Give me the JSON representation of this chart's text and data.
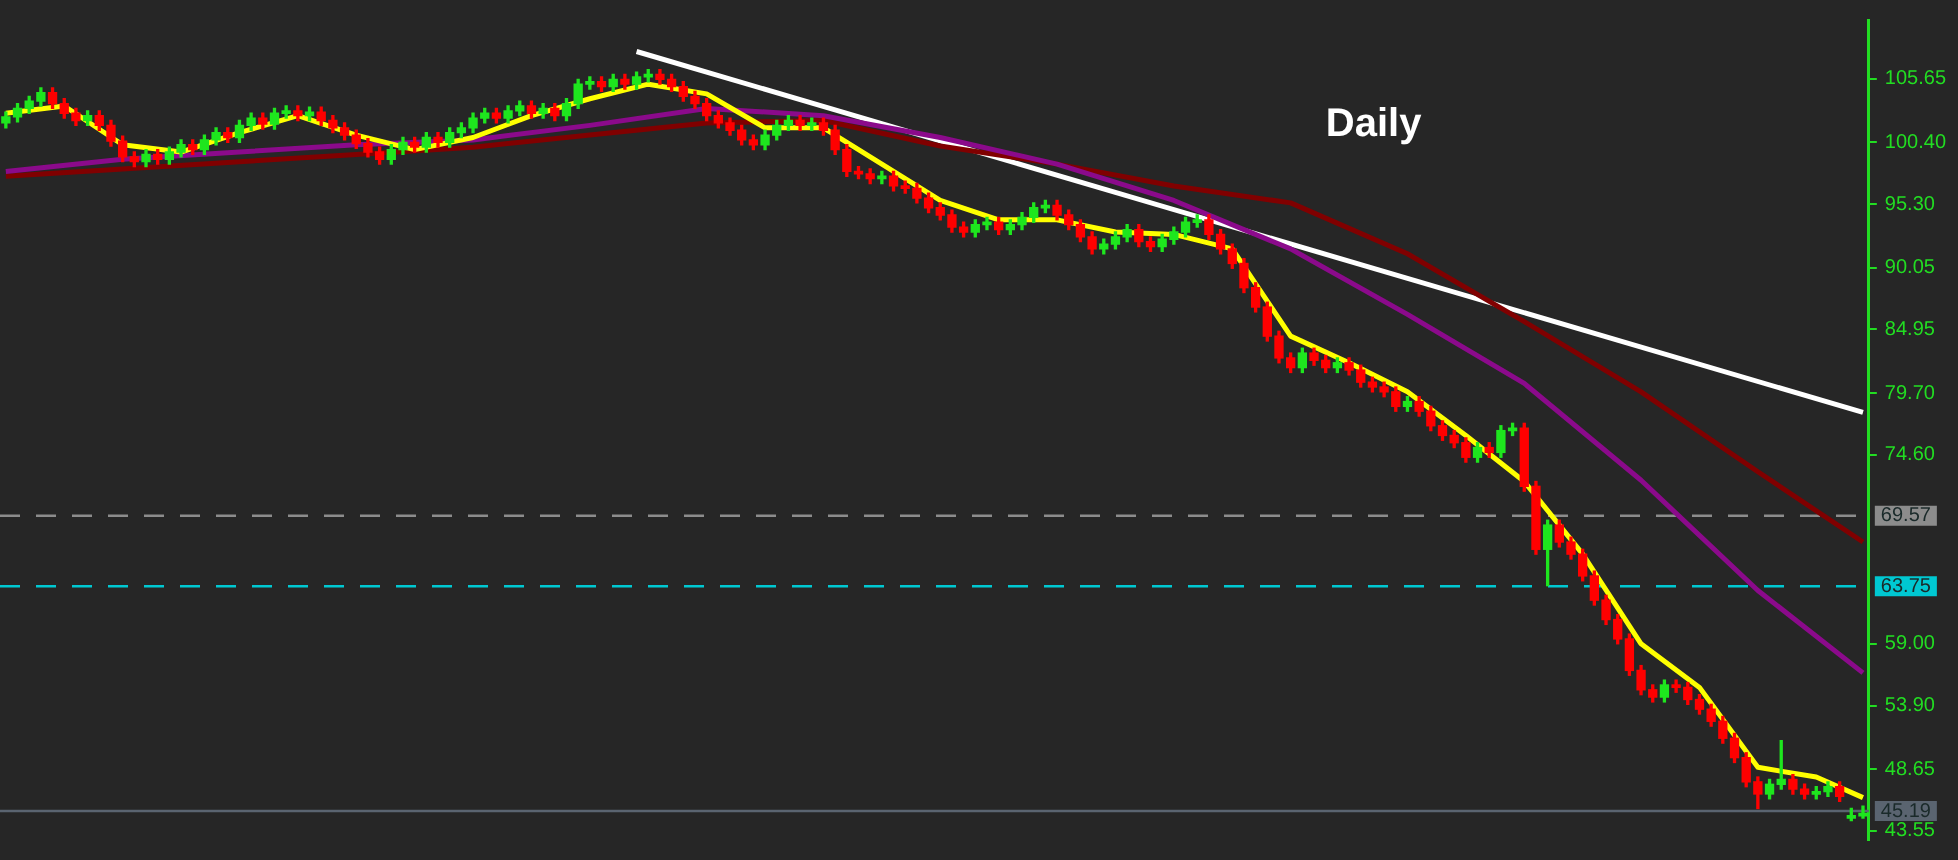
{
  "chart_data": {
    "type": "candlestick",
    "categories": [
      null,
      null,
      null,
      null,
      null,
      null,
      null,
      null,
      null,
      null,
      null,
      null,
      null,
      null,
      null,
      null,
      null,
      null,
      null,
      null,
      null,
      null,
      null,
      null,
      null,
      null,
      null,
      null,
      null,
      null,
      null,
      null,
      null,
      null,
      null,
      null,
      null,
      null,
      null,
      null,
      null,
      null,
      null,
      null,
      null,
      null,
      null,
      null,
      null,
      null,
      null,
      null,
      null,
      null,
      null,
      null,
      null,
      null,
      null,
      null,
      null,
      null,
      null,
      null,
      null,
      null,
      null,
      null,
      null,
      null,
      null,
      null,
      null,
      null,
      null,
      null,
      null,
      null,
      null,
      null,
      null,
      null,
      null,
      null,
      null,
      null,
      null,
      null,
      null,
      null,
      null,
      null,
      null,
      null,
      null,
      null,
      null,
      null,
      null,
      null,
      null,
      null,
      null,
      null,
      null,
      null,
      null,
      null,
      null,
      null,
      null,
      null,
      null,
      null,
      null,
      null,
      null,
      null,
      null,
      null,
      null,
      null,
      null,
      null,
      null,
      null,
      null,
      null,
      null,
      null,
      null,
      null,
      null,
      null,
      null,
      null,
      null,
      null,
      null,
      null,
      null,
      null,
      null,
      null,
      null,
      null,
      null,
      null,
      null,
      null,
      null,
      null,
      null,
      null,
      null,
      null,
      null,
      null,
      null,
      null
    ],
    "ohlc": [
      [
        102.0,
        102.9,
        101.6,
        102.5
      ],
      [
        102.5,
        103.6,
        102.1,
        103.2
      ],
      [
        103.2,
        104.2,
        102.8,
        103.8
      ],
      [
        103.8,
        104.9,
        103.4,
        104.5
      ],
      [
        104.5,
        104.9,
        103.2,
        103.6
      ],
      [
        103.6,
        104.0,
        102.4,
        102.8
      ],
      [
        102.8,
        103.2,
        101.8,
        102.2
      ],
      [
        102.2,
        103.0,
        101.8,
        102.6
      ],
      [
        102.6,
        103.0,
        101.4,
        101.8
      ],
      [
        101.8,
        102.2,
        100.1,
        100.5
      ],
      [
        100.5,
        100.9,
        98.8,
        99.2
      ],
      [
        99.2,
        99.6,
        98.4,
        98.8
      ],
      [
        98.8,
        99.8,
        98.4,
        99.4
      ],
      [
        99.4,
        99.8,
        98.6,
        99.0
      ],
      [
        99.0,
        100.0,
        98.6,
        99.6
      ],
      [
        99.6,
        100.6,
        99.2,
        100.2
      ],
      [
        100.2,
        100.6,
        99.4,
        99.8
      ],
      [
        99.8,
        101.0,
        99.4,
        100.6
      ],
      [
        100.6,
        101.6,
        100.2,
        101.2
      ],
      [
        101.2,
        101.6,
        100.4,
        100.8
      ],
      [
        100.8,
        102.2,
        100.4,
        101.8
      ],
      [
        101.8,
        102.8,
        101.4,
        102.4
      ],
      [
        102.4,
        102.8,
        101.5,
        101.9
      ],
      [
        101.9,
        103.2,
        101.5,
        102.8
      ],
      [
        102.8,
        103.4,
        102.4,
        103.0
      ],
      [
        103.0,
        103.4,
        102.2,
        102.6
      ],
      [
        102.6,
        103.3,
        102.2,
        102.9
      ],
      [
        102.9,
        103.3,
        101.8,
        102.2
      ],
      [
        102.2,
        102.6,
        101.2,
        101.6
      ],
      [
        101.6,
        102.0,
        100.6,
        101.0
      ],
      [
        101.0,
        101.4,
        99.9,
        100.3
      ],
      [
        100.3,
        100.7,
        99.2,
        99.6
      ],
      [
        99.6,
        100.0,
        98.6,
        99.0
      ],
      [
        99.0,
        100.2,
        98.6,
        99.8
      ],
      [
        99.8,
        100.8,
        99.4,
        100.4
      ],
      [
        100.4,
        100.8,
        99.6,
        100.0
      ],
      [
        100.0,
        101.2,
        99.6,
        100.8
      ],
      [
        100.8,
        101.2,
        100.0,
        100.4
      ],
      [
        100.4,
        101.6,
        100.0,
        101.2
      ],
      [
        101.2,
        102.0,
        100.8,
        101.6
      ],
      [
        101.6,
        102.8,
        101.2,
        102.4
      ],
      [
        102.4,
        103.2,
        102.0,
        102.8
      ],
      [
        102.8,
        103.2,
        102.0,
        102.4
      ],
      [
        102.4,
        103.4,
        102.0,
        103.0
      ],
      [
        103.0,
        103.8,
        102.6,
        103.4
      ],
      [
        103.4,
        103.8,
        102.4,
        102.8
      ],
      [
        102.8,
        103.6,
        102.4,
        103.2
      ],
      [
        103.2,
        103.6,
        102.2,
        102.6
      ],
      [
        102.6,
        104.0,
        102.2,
        103.6
      ],
      [
        103.6,
        105.6,
        103.2,
        105.2
      ],
      [
        105.2,
        105.8,
        104.8,
        105.4
      ],
      [
        105.4,
        105.8,
        104.6,
        105.0
      ],
      [
        105.0,
        106.0,
        104.6,
        105.6
      ],
      [
        105.6,
        106.0,
        104.8,
        105.2
      ],
      [
        105.2,
        106.2,
        104.8,
        105.8
      ],
      [
        105.8,
        106.4,
        105.4,
        106.0
      ],
      [
        106.0,
        106.4,
        105.2,
        105.6
      ],
      [
        105.6,
        106.0,
        104.6,
        105.0
      ],
      [
        105.0,
        105.4,
        103.8,
        104.2
      ],
      [
        104.2,
        104.6,
        103.2,
        103.6
      ],
      [
        103.6,
        104.0,
        102.2,
        102.6
      ],
      [
        102.6,
        103.0,
        101.6,
        102.0
      ],
      [
        102.0,
        102.4,
        101.0,
        101.4
      ],
      [
        101.4,
        101.8,
        100.2,
        100.6
      ],
      [
        100.6,
        101.0,
        99.8,
        100.2
      ],
      [
        100.2,
        101.4,
        99.8,
        101.0
      ],
      [
        101.0,
        102.2,
        100.6,
        101.8
      ],
      [
        101.8,
        102.6,
        101.4,
        102.2
      ],
      [
        102.2,
        102.6,
        101.4,
        101.8
      ],
      [
        101.8,
        102.4,
        101.4,
        102.0
      ],
      [
        102.0,
        102.4,
        101.0,
        101.4
      ],
      [
        101.4,
        101.8,
        99.4,
        99.8
      ],
      [
        99.8,
        100.2,
        97.6,
        98.0
      ],
      [
        98.0,
        98.4,
        97.4,
        97.8
      ],
      [
        97.8,
        98.2,
        97.0,
        97.4
      ],
      [
        97.4,
        98.0,
        97.0,
        97.6
      ],
      [
        97.6,
        98.0,
        96.4,
        96.8
      ],
      [
        96.8,
        97.2,
        96.2,
        96.6
      ],
      [
        96.6,
        97.0,
        95.4,
        95.8
      ],
      [
        95.8,
        96.2,
        94.6,
        95.0
      ],
      [
        95.0,
        95.4,
        94.0,
        94.4
      ],
      [
        94.4,
        94.8,
        93.0,
        93.4
      ],
      [
        93.4,
        93.8,
        92.6,
        93.0
      ],
      [
        93.0,
        94.0,
        92.6,
        93.6
      ],
      [
        93.6,
        94.2,
        93.2,
        93.8
      ],
      [
        93.8,
        94.2,
        92.8,
        93.2
      ],
      [
        93.2,
        94.0,
        92.8,
        93.6
      ],
      [
        93.6,
        94.6,
        93.2,
        94.2
      ],
      [
        94.2,
        95.4,
        93.8,
        95.0
      ],
      [
        95.0,
        95.6,
        94.6,
        95.2
      ],
      [
        95.2,
        95.6,
        94.0,
        94.4
      ],
      [
        94.4,
        94.8,
        93.2,
        93.6
      ],
      [
        93.6,
        94.0,
        92.2,
        92.6
      ],
      [
        92.6,
        93.0,
        91.2,
        91.6
      ],
      [
        91.6,
        92.4,
        91.2,
        92.0
      ],
      [
        92.0,
        93.0,
        91.6,
        92.6
      ],
      [
        92.6,
        93.6,
        92.2,
        93.2
      ],
      [
        93.2,
        93.6,
        91.8,
        92.2
      ],
      [
        92.2,
        92.6,
        91.4,
        91.8
      ],
      [
        91.8,
        92.8,
        91.4,
        92.4
      ],
      [
        92.4,
        93.4,
        92.0,
        93.0
      ],
      [
        93.0,
        94.2,
        92.6,
        93.8
      ],
      [
        93.8,
        94.4,
        93.4,
        94.0
      ],
      [
        94.0,
        94.4,
        92.4,
        92.8
      ],
      [
        92.8,
        93.2,
        91.2,
        91.6
      ],
      [
        91.6,
        92.0,
        90.0,
        90.4
      ],
      [
        90.4,
        90.8,
        88.0,
        88.4
      ],
      [
        88.4,
        88.8,
        86.4,
        86.8
      ],
      [
        86.8,
        87.2,
        84.0,
        84.4
      ],
      [
        84.4,
        84.8,
        82.2,
        82.6
      ],
      [
        82.6,
        83.0,
        81.4,
        81.8
      ],
      [
        81.8,
        83.4,
        81.4,
        83.0
      ],
      [
        83.0,
        83.4,
        82.0,
        82.4
      ],
      [
        82.4,
        82.8,
        81.4,
        81.8
      ],
      [
        81.8,
        82.6,
        81.4,
        82.2
      ],
      [
        82.2,
        82.6,
        81.2,
        81.6
      ],
      [
        81.6,
        82.0,
        80.2,
        80.6
      ],
      [
        80.6,
        81.0,
        79.8,
        80.2
      ],
      [
        80.2,
        80.6,
        79.4,
        79.8
      ],
      [
        79.8,
        80.2,
        78.2,
        78.6
      ],
      [
        78.6,
        79.4,
        78.2,
        79.0
      ],
      [
        79.0,
        79.4,
        77.8,
        78.2
      ],
      [
        78.2,
        78.6,
        76.6,
        77.0
      ],
      [
        77.0,
        77.4,
        75.8,
        76.2
      ],
      [
        76.2,
        76.6,
        75.2,
        75.6
      ],
      [
        75.6,
        76.0,
        74.0,
        74.4
      ],
      [
        74.4,
        75.6,
        74.0,
        75.2
      ],
      [
        75.2,
        75.6,
        74.4,
        74.8
      ],
      [
        74.8,
        77.0,
        74.4,
        76.6
      ],
      [
        76.6,
        77.2,
        76.2,
        76.8
      ],
      [
        76.8,
        77.2,
        71.6,
        72.0
      ],
      [
        72.0,
        72.4,
        66.4,
        66.8
      ],
      [
        66.8,
        69.2,
        63.8,
        68.8
      ],
      [
        68.8,
        69.2,
        67.0,
        67.4
      ],
      [
        67.4,
        67.8,
        66.0,
        66.4
      ],
      [
        66.4,
        66.8,
        64.2,
        64.6
      ],
      [
        64.6,
        65.0,
        62.2,
        62.6
      ],
      [
        62.6,
        63.0,
        60.6,
        61.0
      ],
      [
        61.0,
        61.4,
        59.0,
        59.4
      ],
      [
        59.4,
        59.8,
        56.4,
        56.8
      ],
      [
        56.8,
        57.2,
        54.8,
        55.2
      ],
      [
        55.2,
        55.6,
        54.2,
        54.6
      ],
      [
        54.6,
        56.0,
        54.2,
        55.6
      ],
      [
        55.6,
        56.0,
        55.0,
        55.4
      ],
      [
        55.4,
        55.8,
        54.0,
        54.4
      ],
      [
        54.4,
        54.8,
        53.2,
        53.6
      ],
      [
        53.6,
        54.0,
        52.2,
        52.6
      ],
      [
        52.6,
        53.0,
        50.8,
        51.2
      ],
      [
        51.2,
        51.6,
        49.2,
        49.6
      ],
      [
        49.6,
        50.0,
        47.2,
        47.6
      ],
      [
        47.6,
        48.0,
        45.4,
        46.6
      ],
      [
        46.6,
        47.8,
        46.2,
        47.4
      ],
      [
        47.4,
        51.0,
        47.0,
        47.8
      ],
      [
        47.8,
        48.2,
        46.6,
        47.0
      ],
      [
        47.0,
        47.4,
        46.2,
        46.6
      ],
      [
        46.6,
        47.2,
        46.2,
        46.8
      ],
      [
        46.8,
        47.6,
        46.4,
        47.2
      ],
      [
        47.2,
        47.6,
        46.0,
        46.4
      ],
      [
        44.6,
        45.4,
        44.4,
        44.8
      ],
      [
        44.8,
        45.6,
        44.6,
        45.0
      ]
    ],
    "colors": [
      "#1ee61e",
      "#1ee61e",
      "#1ee61e",
      "#1ee61e",
      "#ff0000",
      "#ff0000",
      "#ff0000",
      "#1ee61e",
      "#ff0000",
      "#ff0000",
      "#ff0000",
      "#ff0000",
      "#1ee61e",
      "#ff0000",
      "#1ee61e",
      "#1ee61e",
      "#ff0000",
      "#1ee61e",
      "#1ee61e",
      "#ff0000",
      "#1ee61e",
      "#1ee61e",
      "#ff0000",
      "#1ee61e",
      "#1ee61e",
      "#ff0000",
      "#1ee61e",
      "#ff0000",
      "#ff0000",
      "#ff0000",
      "#ff0000",
      "#ff0000",
      "#ff0000",
      "#1ee61e",
      "#1ee61e",
      "#ff0000",
      "#1ee61e",
      "#ff0000",
      "#1ee61e",
      "#1ee61e",
      "#1ee61e",
      "#1ee61e",
      "#ff0000",
      "#1ee61e",
      "#1ee61e",
      "#ff0000",
      "#1ee61e",
      "#ff0000",
      "#1ee61e",
      "#1ee61e",
      "#1ee61e",
      "#ff0000",
      "#1ee61e",
      "#ff0000",
      "#1ee61e",
      "#1ee61e",
      "#ff0000",
      "#ff0000",
      "#ff0000",
      "#ff0000",
      "#ff0000",
      "#ff0000",
      "#ff0000",
      "#ff0000",
      "#ff0000",
      "#1ee61e",
      "#1ee61e",
      "#1ee61e",
      "#ff0000",
      "#1ee61e",
      "#ff0000",
      "#ff0000",
      "#ff0000",
      "#ff0000",
      "#ff0000",
      "#1ee61e",
      "#ff0000",
      "#ff0000",
      "#ff0000",
      "#ff0000",
      "#ff0000",
      "#ff0000",
      "#ff0000",
      "#1ee61e",
      "#1ee61e",
      "#ff0000",
      "#1ee61e",
      "#1ee61e",
      "#1ee61e",
      "#1ee61e",
      "#ff0000",
      "#ff0000",
      "#ff0000",
      "#ff0000",
      "#1ee61e",
      "#1ee61e",
      "#1ee61e",
      "#ff0000",
      "#ff0000",
      "#1ee61e",
      "#1ee61e",
      "#1ee61e",
      "#1ee61e",
      "#ff0000",
      "#ff0000",
      "#ff0000",
      "#ff0000",
      "#ff0000",
      "#ff0000",
      "#ff0000",
      "#ff0000",
      "#1ee61e",
      "#ff0000",
      "#ff0000",
      "#1ee61e",
      "#ff0000",
      "#ff0000",
      "#ff0000",
      "#ff0000",
      "#ff0000",
      "#1ee61e",
      "#ff0000",
      "#ff0000",
      "#ff0000",
      "#ff0000",
      "#ff0000",
      "#1ee61e",
      "#ff0000",
      "#1ee61e",
      "#1ee61e",
      "#ff0000",
      "#ff0000",
      "#1ee61e",
      "#ff0000",
      "#ff0000",
      "#ff0000",
      "#ff0000",
      "#ff0000",
      "#ff0000",
      "#ff0000",
      "#ff0000",
      "#ff0000",
      "#1ee61e",
      "#ff0000",
      "#ff0000",
      "#ff0000",
      "#ff0000",
      "#ff0000",
      "#ff0000",
      "#ff0000",
      "#ff0000",
      "#1ee61e",
      "#1ee61e",
      "#ff0000",
      "#ff0000",
      "#1ee61e",
      "#1ee61e",
      "#ff0000",
      "#1ee61e",
      "#1ee61e"
    ],
    "series": [
      {
        "type": "line",
        "color": "#ffff00",
        "values": [
          102.8,
          null,
          null,
          null,
          null,
          103.4,
          null,
          null,
          null,
          null,
          100.2,
          null,
          null,
          null,
          null,
          99.6,
          null,
          null,
          null,
          null,
          101.2,
          null,
          null,
          null,
          null,
          102.6,
          null,
          null,
          null,
          null,
          101.0,
          null,
          null,
          null,
          null,
          99.8,
          null,
          null,
          null,
          null,
          100.8,
          null,
          null,
          null,
          null,
          102.6,
          null,
          null,
          null,
          null,
          104.0,
          null,
          null,
          null,
          null,
          105.2,
          null,
          null,
          null,
          null,
          104.4,
          null,
          null,
          null,
          null,
          101.6,
          null,
          null,
          null,
          null,
          101.6,
          null,
          null,
          null,
          null,
          98.6,
          null,
          null,
          null,
          null,
          95.6,
          null,
          null,
          null,
          null,
          94.0,
          null,
          null,
          null,
          null,
          94.0,
          null,
          null,
          null,
          null,
          93.0,
          null,
          null,
          null,
          null,
          92.8,
          null,
          null,
          null,
          null,
          91.6,
          null,
          null,
          null,
          null,
          84.4,
          null,
          null,
          null,
          null,
          82.2,
          null,
          null,
          null,
          null,
          79.8,
          null,
          null,
          null,
          null,
          76.2,
          null,
          null,
          null,
          null,
          72.4,
          null,
          null,
          null,
          null,
          66.4,
          null,
          null,
          null,
          null,
          59.0,
          null,
          null,
          null,
          null,
          55.4,
          null,
          null,
          null,
          null,
          48.8,
          null,
          null,
          null,
          null,
          48.0,
          null,
          null,
          null,
          46.3
        ]
      },
      {
        "type": "line",
        "color": "#8b0a8b",
        "values": [
          98.0,
          null,
          null,
          null,
          null,
          null,
          null,
          null,
          null,
          null,
          99.0,
          null,
          null,
          null,
          null,
          null,
          null,
          null,
          null,
          null,
          99.6,
          null,
          null,
          null,
          null,
          null,
          null,
          null,
          null,
          null,
          100.2,
          null,
          null,
          null,
          null,
          null,
          null,
          null,
          null,
          null,
          100.6,
          null,
          null,
          null,
          null,
          null,
          null,
          null,
          null,
          null,
          101.8,
          null,
          null,
          null,
          null,
          null,
          null,
          null,
          null,
          null,
          103.2,
          null,
          null,
          null,
          null,
          null,
          null,
          null,
          null,
          null,
          102.6,
          null,
          null,
          null,
          null,
          null,
          null,
          null,
          null,
          null,
          100.8,
          null,
          null,
          null,
          null,
          null,
          null,
          null,
          null,
          null,
          98.6,
          null,
          null,
          null,
          null,
          null,
          null,
          null,
          null,
          null,
          95.6,
          null,
          null,
          null,
          null,
          null,
          null,
          null,
          null,
          null,
          91.6,
          null,
          null,
          null,
          null,
          null,
          null,
          null,
          null,
          null,
          86.2,
          null,
          null,
          null,
          null,
          null,
          null,
          null,
          null,
          null,
          80.5,
          null,
          null,
          null,
          null,
          null,
          null,
          null,
          null,
          null,
          72.5,
          null,
          null,
          null,
          null,
          null,
          null,
          null,
          null,
          null,
          63.4,
          null,
          null,
          null,
          null,
          null,
          null,
          null,
          null,
          56.6
        ]
      },
      {
        "type": "line",
        "color": "#800000",
        "values": [
          97.6,
          null,
          null,
          null,
          null,
          null,
          null,
          null,
          null,
          null,
          98.2,
          null,
          null,
          null,
          null,
          null,
          null,
          null,
          null,
          null,
          98.8,
          null,
          null,
          null,
          null,
          null,
          null,
          null,
          null,
          null,
          99.4,
          null,
          null,
          null,
          null,
          null,
          null,
          null,
          null,
          null,
          100.0,
          null,
          null,
          null,
          null,
          null,
          null,
          null,
          null,
          null,
          101.0,
          null,
          null,
          null,
          null,
          null,
          null,
          null,
          null,
          null,
          102.0,
          null,
          null,
          null,
          null,
          null,
          null,
          null,
          null,
          null,
          102.2,
          null,
          null,
          null,
          null,
          null,
          null,
          null,
          null,
          null,
          100.1,
          null,
          null,
          null,
          null,
          null,
          null,
          null,
          null,
          null,
          98.6,
          null,
          null,
          null,
          null,
          null,
          null,
          null,
          null,
          null,
          96.8,
          null,
          null,
          null,
          null,
          null,
          null,
          null,
          null,
          null,
          95.4,
          null,
          null,
          null,
          null,
          null,
          null,
          null,
          null,
          null,
          91.2,
          null,
          null,
          null,
          null,
          null,
          null,
          null,
          null,
          null,
          85.6,
          null,
          null,
          null,
          null,
          null,
          null,
          null,
          null,
          null,
          79.8,
          null,
          null,
          null,
          null,
          null,
          null,
          null,
          null,
          null,
          73.2,
          null,
          null,
          null,
          null,
          null,
          null,
          null,
          null,
          67.4
        ]
      },
      {
        "type": "line",
        "color": "#ffffff",
        "values": [
          null,
          null,
          null,
          null,
          null,
          null,
          null,
          null,
          null,
          null,
          null,
          null,
          null,
          null,
          null,
          null,
          null,
          null,
          null,
          null,
          null,
          null,
          null,
          null,
          null,
          null,
          null,
          null,
          null,
          null,
          null,
          null,
          null,
          null,
          null,
          null,
          null,
          null,
          null,
          null,
          null,
          null,
          null,
          null,
          null,
          null,
          null,
          null,
          null,
          null,
          null,
          null,
          null,
          null,
          107.9,
          null,
          null,
          null,
          null,
          null,
          null,
          null,
          null,
          null,
          null,
          null,
          null,
          null,
          null,
          null,
          null,
          null,
          null,
          null,
          null,
          null,
          null,
          null,
          null,
          null,
          null,
          null,
          null,
          null,
          null,
          null,
          null,
          null,
          null,
          null,
          null,
          null,
          null,
          null,
          null,
          null,
          null,
          null,
          null,
          null,
          null,
          null,
          null,
          null,
          null,
          null,
          null,
          null,
          null,
          null,
          null,
          null,
          null,
          null,
          null,
          null,
          null,
          null,
          null,
          null,
          null,
          null,
          null,
          null,
          null,
          null,
          null,
          null,
          null,
          null,
          null,
          null,
          null,
          null,
          null,
          null,
          null,
          null,
          null,
          null,
          null,
          null,
          null,
          null,
          null,
          null,
          null,
          null,
          null,
          null,
          null,
          null,
          null,
          null,
          null,
          null,
          null,
          null,
          null,
          78.1
        ]
      }
    ],
    "ylim": [
      42.8,
      110.5
    ],
    "yticks": [
      {
        "value": 105.65,
        "label": "105.65"
      },
      {
        "value": 100.4,
        "label": "100.40"
      },
      {
        "value": 95.3,
        "label": "95.30"
      },
      {
        "value": 90.05,
        "label": "90.05"
      },
      {
        "value": 84.95,
        "label": "84.95"
      },
      {
        "value": 79.7,
        "label": "79.70"
      },
      {
        "value": 74.6,
        "label": "74.60"
      },
      {
        "value": 59,
        "label": "59.00"
      },
      {
        "value": 53.9,
        "label": "53.90"
      },
      {
        "value": 48.65,
        "label": "48.65"
      },
      {
        "value": 43.55,
        "label": "43.55"
      }
    ],
    "ref_lines": [
      {
        "axis": "y",
        "value": 69.57,
        "label": "69.57",
        "color": "#8c8c8c",
        "line_style": "dashed"
      },
      {
        "axis": "y",
        "value": 63.75,
        "label": "63.75",
        "color": "#00c8d2",
        "line_style": "dashed"
      },
      {
        "axis": "y",
        "value": 45.19,
        "label": "45.19",
        "color": "#5a6470",
        "line_style": "solid"
      }
    ],
    "annotations": [
      "Daily"
    ],
    "legend": false,
    "grid": false,
    "marker": "none",
    "tick_labels": "y"
  }
}
